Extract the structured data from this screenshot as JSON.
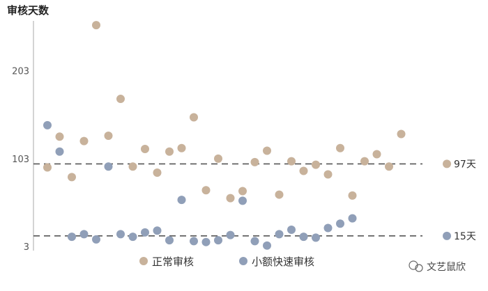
{
  "chart_data": {
    "type": "scatter",
    "ylabel": "审核天数",
    "yticks": [
      3,
      103,
      203
    ],
    "ylim": [
      3,
      263
    ],
    "series": [
      {
        "name": "正常审核",
        "color": "#c8b29b",
        "values": [
          93,
          128,
          82,
          123,
          255,
          129,
          171,
          94,
          114,
          87,
          111,
          115,
          150,
          67,
          103,
          58,
          66,
          99,
          112,
          62,
          100,
          89,
          96,
          85,
          115,
          61,
          100,
          108,
          94,
          131
        ]
      },
      {
        "name": "小额快速审核",
        "color": "#909fb8",
        "values": [
          141,
          111,
          14,
          17,
          11,
          94,
          17,
          14,
          19,
          21,
          10,
          56,
          9,
          8,
          10,
          16,
          55,
          9,
          4,
          17,
          22,
          14,
          13,
          24,
          29,
          35
        ]
      }
    ],
    "reference_lines": [
      {
        "value": 97,
        "label": "97天",
        "color": "#c8b29b"
      },
      {
        "value": 15,
        "label": "15天",
        "color": "#909fb8"
      }
    ],
    "legend_position": "bottom"
  },
  "watermark": {
    "text": "文艺鼠欣"
  }
}
